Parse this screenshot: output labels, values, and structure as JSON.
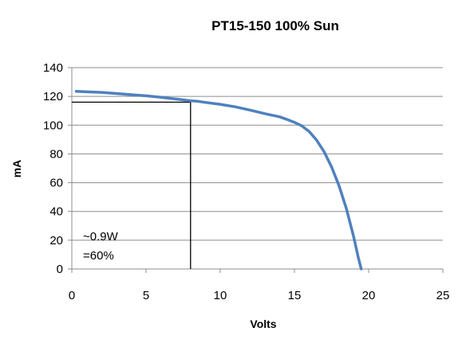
{
  "chart_data": {
    "type": "line",
    "title": "PT15-150 100% Sun",
    "xlabel": "Volts",
    "ylabel": "mA",
    "xlim": [
      0,
      25
    ],
    "ylim": [
      0,
      140
    ],
    "x_ticks": [
      0,
      5,
      10,
      15,
      20,
      25
    ],
    "y_ticks": [
      0,
      20,
      40,
      60,
      80,
      100,
      120,
      140
    ],
    "x_tick_labels": [
      "0",
      "5",
      "10",
      "15",
      "20",
      "25"
    ],
    "y_tick_labels": [
      "0",
      "20",
      "40",
      "60",
      "80",
      "100",
      "120",
      "140"
    ],
    "grid": "horizontal",
    "legend": "none",
    "series": [
      {
        "color": "#4f81bd",
        "x": [
          0.3,
          1,
          2,
          3,
          4,
          5,
          6,
          7,
          8,
          8.5,
          9,
          10,
          11,
          12,
          13,
          14,
          14.5,
          15,
          15.5,
          16,
          16.5,
          17,
          17.5,
          18,
          18.5,
          19,
          19.3,
          19.5
        ],
        "y": [
          123.5,
          123.2,
          122.8,
          122,
          121.2,
          120.4,
          119.4,
          118.2,
          117,
          116.6,
          115.8,
          114.5,
          112.8,
          110.5,
          108,
          105.8,
          104,
          102,
          99.5,
          95.5,
          89.5,
          81.5,
          71,
          58,
          42,
          22,
          8,
          0
        ]
      }
    ],
    "annotations": [
      {
        "lines": [
          "~0.9W",
          "=60%"
        ]
      }
    ],
    "reference_point": {
      "x": 8,
      "y": 116
    },
    "reference_line_color": "#000000"
  }
}
